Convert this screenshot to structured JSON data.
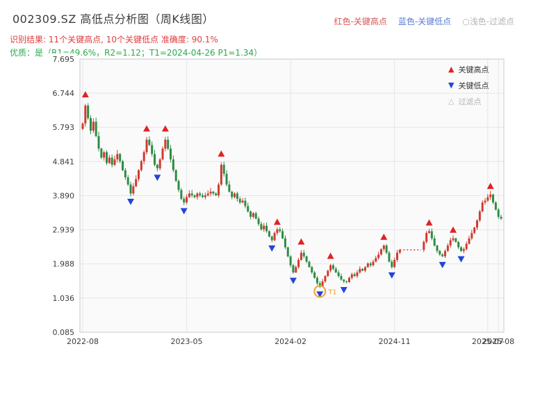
{
  "header": {
    "title": "002309.SZ 高低点分析图（周K线图）",
    "legend": [
      {
        "label": "红色-关键高点",
        "color": "#d9534f"
      },
      {
        "label": "蓝色-关键低点",
        "color": "#5b7bd5"
      },
      {
        "label": "○浅色-过滤点",
        "color": "#b3b3b3"
      }
    ],
    "result_line": "识别结果: 11个关键高点, 10个关键低点  准确度: 90.1%",
    "quality_line": "优质：是（R1=49.6%，R2=1.12；T1=2024-04-26 P1=1.34）"
  },
  "chart_legend": [
    {
      "icon": "▲",
      "label": "关键高点"
    },
    {
      "icon": "▼",
      "label": "关键低点"
    },
    {
      "icon": "△",
      "label": "过滤点"
    }
  ],
  "chart_data": {
    "type": "candlestick",
    "title": "002309.SZ 高低点分析图（周K线图）",
    "frequency": "weekly",
    "num_key_highs": 11,
    "num_key_lows": 10,
    "accuracy": "90.1%",
    "ylim": [
      0.085,
      7.695
    ],
    "yticks": [
      "7.695",
      "6.744",
      "5.793",
      "4.841",
      "3.890",
      "2.939",
      "1.988",
      "1.036",
      "0.085"
    ],
    "xticks": [
      {
        "label": "2022-08",
        "week": 0
      },
      {
        "label": "2023-05",
        "week": 39
      },
      {
        "label": "2024-02",
        "week": 78
      },
      {
        "label": "2024-11",
        "week": 117
      },
      {
        "label": "2025-07",
        "week": 152
      },
      {
        "label": "2025-08",
        "week": 156
      }
    ],
    "open_first": 5.75,
    "closes": [
      5.9,
      6.4,
      6.05,
      5.7,
      5.95,
      5.55,
      5.2,
      4.95,
      5.1,
      4.8,
      4.95,
      4.75,
      4.9,
      5.05,
      4.85,
      4.6,
      4.4,
      4.2,
      3.95,
      4.15,
      4.35,
      4.6,
      4.85,
      5.1,
      5.45,
      5.3,
      5.05,
      4.75,
      4.65,
      4.9,
      5.2,
      5.45,
      5.2,
      4.9,
      4.6,
      4.3,
      4.05,
      3.8,
      3.7,
      3.85,
      3.95,
      3.9,
      3.85,
      3.95,
      3.9,
      3.85,
      3.9,
      3.95,
      4.0,
      3.95,
      3.9,
      4.2,
      4.75,
      4.5,
      4.2,
      4.0,
      3.85,
      3.95,
      3.8,
      3.7,
      3.75,
      3.6,
      3.45,
      3.3,
      3.4,
      3.25,
      3.1,
      2.95,
      3.05,
      2.9,
      2.75,
      2.65,
      2.85,
      2.95,
      2.9,
      2.7,
      2.45,
      2.2,
      1.95,
      1.75,
      1.9,
      2.1,
      2.3,
      2.2,
      2.05,
      1.9,
      1.75,
      1.6,
      1.45,
      1.35,
      1.5,
      1.65,
      1.8,
      1.95,
      1.85,
      1.75,
      1.65,
      1.55,
      1.5,
      1.48,
      1.6,
      1.7,
      1.65,
      1.75,
      1.85,
      1.8,
      1.9,
      2.0,
      1.95,
      2.05,
      2.15,
      2.25,
      2.4,
      2.5,
      2.3,
      2.05,
      1.9,
      2.1,
      2.3,
      2.38,
      2.38,
      2.38,
      2.38,
      2.38,
      2.38,
      2.38,
      2.38,
      2.38,
      2.6,
      2.85,
      2.9,
      2.7,
      2.5,
      2.35,
      2.25,
      2.2,
      2.35,
      2.5,
      2.65,
      2.7,
      2.6,
      2.45,
      2.35,
      2.4,
      2.55,
      2.7,
      2.85,
      3.0,
      3.2,
      3.45,
      3.7,
      3.75,
      3.85,
      3.92,
      3.7,
      3.5,
      3.3,
      3.25
    ],
    "suspension": {
      "from_week": 119,
      "to_week": 127,
      "price": 2.38
    },
    "key_highs": [
      {
        "week": 1,
        "price": 6.55
      },
      {
        "week": 24,
        "price": 5.6
      },
      {
        "week": 31,
        "price": 5.6
      },
      {
        "week": 52,
        "price": 4.9
      },
      {
        "week": 73,
        "price": 3.0
      },
      {
        "week": 82,
        "price": 2.45
      },
      {
        "week": 93,
        "price": 2.05
      },
      {
        "week": 113,
        "price": 2.58
      },
      {
        "week": 130,
        "price": 2.98
      },
      {
        "week": 139,
        "price": 2.78
      },
      {
        "week": 153,
        "price": 4.0
      }
    ],
    "key_lows": [
      {
        "week": 18,
        "price": 3.88
      },
      {
        "week": 28,
        "price": 4.55
      },
      {
        "week": 38,
        "price": 3.62
      },
      {
        "week": 71,
        "price": 2.58
      },
      {
        "week": 79,
        "price": 1.68
      },
      {
        "week": 89,
        "price": 1.3
      },
      {
        "week": 98,
        "price": 1.42
      },
      {
        "week": 116,
        "price": 1.83
      },
      {
        "week": 135,
        "price": 2.12
      },
      {
        "week": 142,
        "price": 2.28
      }
    ],
    "t1_annotation": {
      "week": 89,
      "price": 1.3,
      "label": "T1",
      "date": "2024-04-26",
      "p1": 1.34
    },
    "colors": {
      "up": "#cf3b2e",
      "down": "#2e8b45",
      "high_marker": "#e02222",
      "low_marker": "#2244dd",
      "filtered": "#bbbbbb",
      "annotation": "#f0a030",
      "grid": "#e6e6ea",
      "plot_bg": "#fafafa"
    }
  }
}
